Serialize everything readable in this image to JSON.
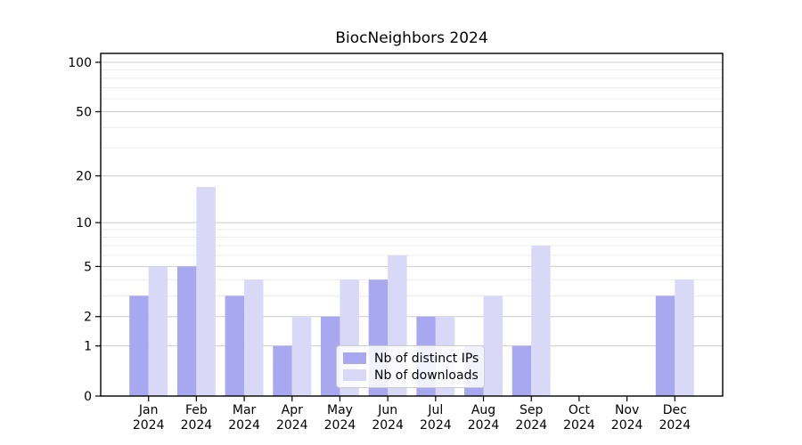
{
  "chart_data": {
    "type": "bar",
    "title": "BiocNeighbors 2024",
    "categories": [
      "Jan",
      "Feb",
      "Mar",
      "Apr",
      "May",
      "Jun",
      "Jul",
      "Aug",
      "Sep",
      "Oct",
      "Nov",
      "Dec"
    ],
    "category_year": "2024",
    "series": [
      {
        "name": "Nb of distinct IPs",
        "color": "#a8a8f0",
        "values": [
          3,
          5,
          3,
          1,
          2,
          4,
          2,
          1,
          1,
          0,
          0,
          3
        ]
      },
      {
        "name": "Nb of downloads",
        "color": "#d9d9f7",
        "values": [
          5,
          17,
          4,
          2,
          4,
          6,
          2,
          3,
          7,
          0,
          0,
          4
        ]
      }
    ],
    "y_scale": "log1p",
    "y_major_ticks": [
      0,
      1,
      2,
      5,
      10,
      20,
      50,
      100
    ],
    "y_minor_gridlines": [
      3,
      4,
      6,
      7,
      8,
      9,
      30,
      40,
      60,
      70,
      80,
      90
    ],
    "ylim": [
      0,
      113
    ],
    "grid": true,
    "legend_position": "lower center",
    "colors": {
      "major_grid": "#cccccc",
      "minor_grid": "#ececec",
      "axis": "#000000",
      "background": "#ffffff"
    }
  }
}
